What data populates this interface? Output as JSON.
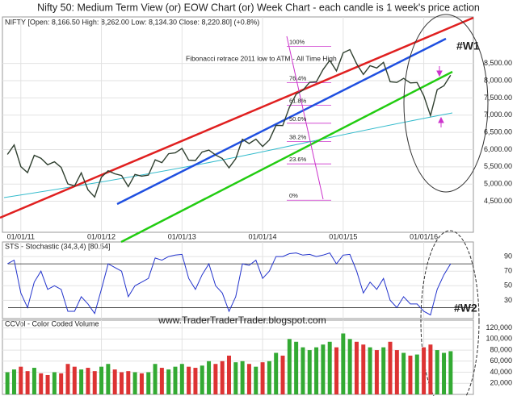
{
  "chart_data": {
    "type": "line",
    "title": "Nifty 50: Medium Term View (or) EOW Chart (or) Week Chart - each candle is 1 week's price action",
    "legend_text": "NIFTY [Open: 8,166.50  High: 8,262.00  Low: 8,134.30  Close: 8,220.80] (+0.8%)",
    "categories": [
      null,
      null,
      "01/01/11",
      null,
      null,
      null,
      null,
      null,
      null,
      null,
      null,
      null,
      null,
      null,
      "01/01/12",
      null,
      null,
      null,
      null,
      null,
      null,
      null,
      null,
      null,
      null,
      null,
      "01/01/13",
      null,
      null,
      null,
      null,
      null,
      null,
      null,
      null,
      null,
      null,
      null,
      "01/01/14",
      null,
      null,
      null,
      null,
      null,
      null,
      null,
      null,
      null,
      null,
      null,
      "01/01/15",
      null,
      null,
      null,
      null,
      null,
      null,
      null,
      null,
      null,
      null,
      null,
      "01/01/16",
      null,
      null,
      null,
      null
    ],
    "series": [
      {
        "color": "#2f3f2f",
        "values": [
          5860,
          6135,
          5505,
          5333,
          5834,
          5750,
          5560,
          5647,
          5482,
          5001,
          4943,
          5326,
          4832,
          4624,
          5199,
          5385,
          5296,
          5248,
          4924,
          5279,
          5229,
          5259,
          5703,
          5620,
          5880,
          5905,
          6035,
          5693,
          5683,
          5930,
          5986,
          5842,
          5742,
          5471,
          5735,
          6299,
          6176,
          6304,
          6090,
          6277,
          6704,
          6696,
          7230,
          7611,
          7721,
          7954,
          7965,
          8322,
          8588,
          8283,
          8809,
          8902,
          8491,
          8182,
          8434,
          8369,
          8533,
          7971,
          7949,
          8066,
          7935,
          7946,
          7564,
          6987,
          7738,
          7850,
          8160
        ]
      }
    ],
    "ylim": [
      3600,
      9850
    ],
    "yticks": [
      {
        "value": 4500,
        "label": "4,500.00"
      },
      {
        "value": 5000,
        "label": "5,000.00"
      },
      {
        "value": 5500,
        "label": "5,500.00"
      },
      {
        "value": 6000,
        "label": "6,000.00"
      },
      {
        "value": 6500,
        "label": "6,500.00"
      },
      {
        "value": 7000,
        "label": "7,000.00"
      },
      {
        "value": 7500,
        "label": "7,500.00"
      },
      {
        "value": 8000,
        "label": "8,000.00"
      },
      {
        "value": 8500,
        "label": "8,500.00"
      }
    ],
    "grid": true,
    "fib_title": "Fibonacci retrace 2011 low to ATM - All Time High",
    "fib_levels": [
      {
        "value": 4531,
        "label": "0%"
      },
      {
        "value": 5585,
        "label": "23.6%"
      },
      {
        "value": 6237,
        "label": "38.2%"
      },
      {
        "value": 6764,
        "label": "50.0%"
      },
      {
        "value": 7290,
        "label": "61.8%"
      },
      {
        "value": 7942,
        "label": "76.4%"
      },
      {
        "value": 8996,
        "label": "100%"
      }
    ],
    "fib_color": "#cc33cc",
    "annotations": [
      "#W1",
      "#W2",
      "www.TraderTraderTrader.blogspot.com"
    ],
    "stochastic": {
      "label": "STS - Stochastic (34,3,4) [80.54]",
      "color": "#2233cc",
      "values": [
        80,
        85,
        40,
        20,
        55,
        70,
        45,
        50,
        45,
        15,
        15,
        35,
        25,
        12,
        45,
        80,
        75,
        70,
        35,
        50,
        55,
        60,
        88,
        85,
        90,
        92,
        93,
        60,
        45,
        65,
        80,
        50,
        40,
        15,
        35,
        80,
        78,
        85,
        60,
        70,
        90,
        90,
        94,
        95,
        92,
        93,
        90,
        92,
        95,
        80,
        92,
        93,
        70,
        40,
        55,
        45,
        60,
        30,
        20,
        35,
        25,
        25,
        15,
        10,
        45,
        65,
        80
      ],
      "ylim": [
        5,
        110
      ],
      "yticks": [
        30,
        50,
        70,
        90
      ],
      "levels": [
        20,
        80
      ]
    },
    "volume": {
      "label": "CCVol - Color Coded Volume",
      "up_color": "#33aa33",
      "down_color": "#dd3333",
      "values": [
        40000,
        45000,
        50000,
        42000,
        48000,
        38000,
        35000,
        40000,
        38000,
        55000,
        50000,
        45000,
        48000,
        42000,
        50000,
        55000,
        45000,
        40000,
        42000,
        40000,
        38000,
        40000,
        55000,
        48000,
        45000,
        50000,
        55000,
        50000,
        48000,
        52000,
        60000,
        55000,
        60000,
        70000,
        58000,
        60000,
        55000,
        50000,
        58000,
        60000,
        75000,
        70000,
        100000,
        95000,
        85000,
        80000,
        85000,
        90000,
        95000,
        85000,
        110000,
        100000,
        95000,
        90000,
        85000,
        80000,
        85000,
        95000,
        80000,
        75000,
        70000,
        72000,
        85000,
        90000,
        80000,
        75000,
        78000
      ],
      "ylim": [
        0,
        134000
      ],
      "yticks": [
        {
          "value": 20000,
          "label": "20,000"
        },
        {
          "value": 40000,
          "label": "40,000"
        },
        {
          "value": 60000,
          "label": "60,000"
        },
        {
          "value": 80000,
          "label": "80,000"
        },
        {
          "value": 100000,
          "label": "100,000"
        },
        {
          "value": 120000,
          "label": "120,000"
        }
      ]
    }
  }
}
